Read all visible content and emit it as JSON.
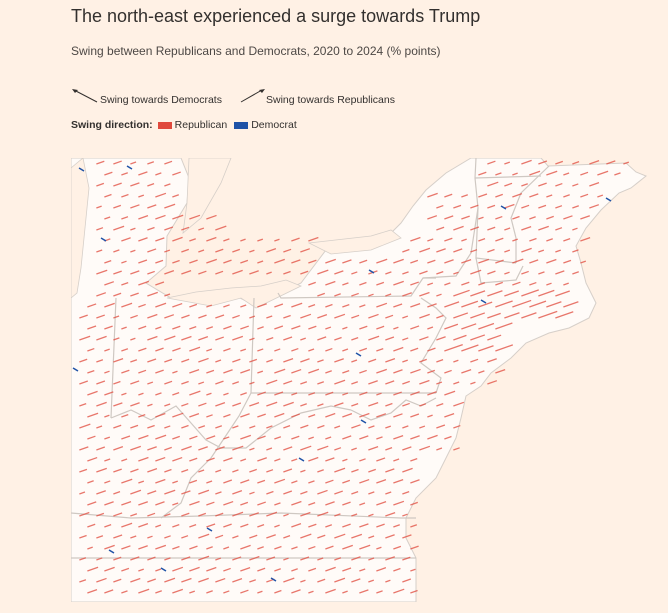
{
  "title": "The north-east experienced a surge towards Trump",
  "subtitle": "Swing between Republicans and Democrats, 2020 to 2024 (% points)",
  "arrow_legend": {
    "left_label": "Swing towards Democrats",
    "right_label": "Swing towards Republicans"
  },
  "direction_legend": {
    "label": "Swing direction:",
    "items": [
      {
        "name": "Republican",
        "color": "#e0493c"
      },
      {
        "name": "Democrat",
        "color": "#1f52a6"
      }
    ]
  },
  "colors": {
    "background": "#fff1e5",
    "land": "#fffbf8",
    "border": "#c9c2bd",
    "republican": "#e0493c",
    "democrat": "#1f52a6"
  }
}
